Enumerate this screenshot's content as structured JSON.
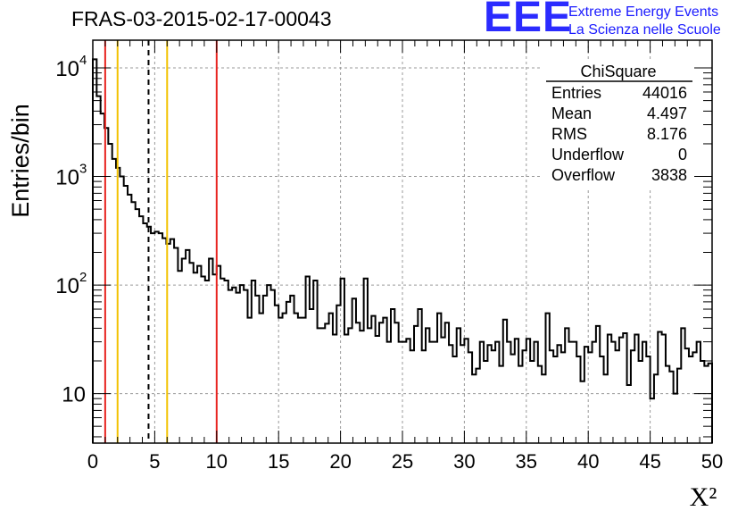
{
  "header": {
    "run_title": "FRAS-03-2015-02-17-00043"
  },
  "logo": {
    "mark": "EEE",
    "line1": "Extreme Energy Events",
    "line2": "La Scienza nelle Scuole"
  },
  "colors": {
    "red_line": "#e8231f",
    "yellow_line": "#f2c200",
    "black_dashed": "#000000",
    "histogram": "#000000",
    "grid": "#9a9a9a",
    "logo": "#2b2bff"
  },
  "chart_data": {
    "type": "histogram",
    "title": "FRAS-03-2015-02-17-00043",
    "xlabel": "X²",
    "ylabel": "Entries/bin",
    "xlim": [
      0,
      50
    ],
    "ylim": [
      3.5,
      18000
    ],
    "y_scale": "log",
    "grid": true,
    "bin_width": 0.5,
    "x_ticks": [
      "0",
      "5",
      "10",
      "15",
      "20",
      "25",
      "30",
      "35",
      "40",
      "45",
      "50"
    ],
    "y_ticks": [
      {
        "base": "10",
        "exp": "4",
        "value": 10000
      },
      {
        "base": "10",
        "exp": "3",
        "value": 1000
      },
      {
        "base": "10",
        "exp": "2",
        "value": 100
      },
      {
        "base": "10",
        "exp": "",
        "value": 10
      }
    ],
    "bin_values": [
      12000,
      5500,
      3800,
      2800,
      2000,
      1450,
      1200,
      1000,
      820,
      680,
      580,
      500,
      430,
      370,
      345,
      300,
      310,
      300,
      270,
      240,
      265,
      220,
      135,
      175,
      210,
      160,
      130,
      150,
      120,
      110,
      175,
      125,
      150,
      115,
      110,
      90,
      95,
      85,
      100,
      90,
      50,
      110,
      80,
      55,
      80,
      100,
      90,
      65,
      50,
      55,
      70,
      80,
      55,
      50,
      50,
      120,
      60,
      110,
      40,
      40,
      44,
      55,
      35,
      65,
      115,
      35,
      40,
      75,
      45,
      38,
      115,
      40,
      52,
      34,
      45,
      50,
      30,
      60,
      45,
      30,
      30,
      32,
      25,
      42,
      60,
      25,
      40,
      30,
      30,
      55,
      33,
      45,
      28,
      22,
      40,
      28,
      32,
      24,
      15,
      17,
      30,
      20,
      28,
      25,
      30,
      18,
      48,
      30,
      23,
      32,
      18,
      25,
      32,
      20,
      30,
      18,
      15,
      55,
      25,
      22,
      28,
      24,
      40,
      30,
      30,
      22,
      13,
      27,
      24,
      30,
      42,
      22,
      15,
      35,
      30,
      25,
      33,
      36,
      12,
      25,
      35,
      20,
      30,
      22,
      9,
      15,
      37,
      35,
      18,
      16,
      10,
      17,
      40,
      26,
      22,
      24,
      30,
      20,
      18,
      19
    ],
    "lines": [
      {
        "x": 1,
        "color": "#e8231f",
        "style": "solid"
      },
      {
        "x": 2,
        "color": "#f2c200",
        "style": "solid"
      },
      {
        "x": 4.5,
        "color": "#000000",
        "style": "dashed"
      },
      {
        "x": 6,
        "color": "#f2c200",
        "style": "solid"
      },
      {
        "x": 10,
        "color": "#e8231f",
        "style": "solid"
      }
    ],
    "stats_box": {
      "name": "ChiSquare",
      "rows": [
        {
          "label": "Entries",
          "value": "44016"
        },
        {
          "label": "Mean",
          "value": "4.497"
        },
        {
          "label": "RMS",
          "value": "8.176"
        },
        {
          "label": "Underflow",
          "value": "0"
        },
        {
          "label": "Overflow",
          "value": "3838"
        }
      ]
    }
  }
}
